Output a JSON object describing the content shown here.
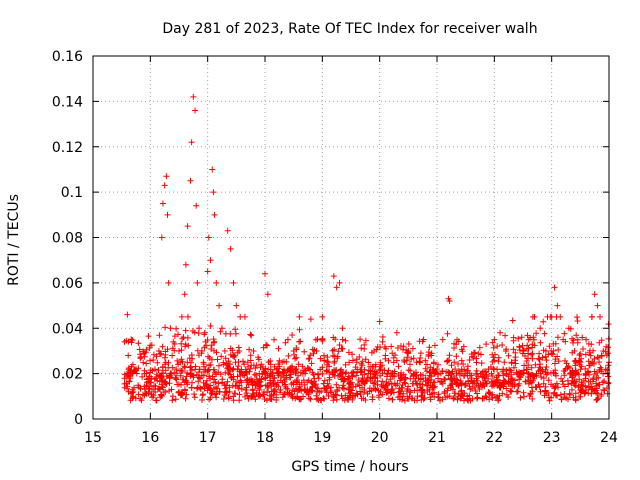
{
  "chart_data": {
    "type": "scatter",
    "title": "Day 281 of 2023, Rate Of TEC Index for receiver walh",
    "xlabel": "GPS time / hours",
    "ylabel": "ROTI / TECUs",
    "xlim": [
      15,
      24
    ],
    "ylim": [
      0,
      0.16
    ],
    "x_ticks": [
      15,
      16,
      17,
      18,
      19,
      20,
      21,
      22,
      23,
      24
    ],
    "y_ticks": [
      0,
      0.02,
      0.04,
      0.06,
      0.08,
      0.1,
      0.12,
      0.14,
      0.16
    ],
    "x_tick_labels": [
      "15",
      "16",
      "17",
      "18",
      "19",
      "20",
      "21",
      "22",
      "23",
      "24"
    ],
    "y_tick_labels": [
      "0",
      "0.02",
      "0.04",
      "0.06",
      "0.08",
      "0.1",
      "0.12",
      "0.14",
      "0.16"
    ],
    "grid": true,
    "marker": "+",
    "series_color": "#ff0000",
    "series": [
      {
        "name": "ROTI",
        "note": "dense cloud of + markers; representative points read from the plot",
        "x": [
          15.55,
          15.6,
          15.62,
          15.65,
          15.7,
          15.75,
          15.8,
          15.9,
          16.0,
          16.05,
          16.1,
          16.15,
          16.2,
          16.22,
          16.25,
          16.28,
          16.3,
          16.32,
          16.35,
          16.38,
          16.4,
          16.45,
          16.5,
          16.55,
          16.6,
          16.62,
          16.65,
          16.7,
          16.72,
          16.75,
          16.78,
          16.8,
          16.82,
          16.85,
          16.9,
          16.95,
          17.0,
          17.02,
          17.05,
          17.08,
          17.1,
          17.12,
          17.15,
          17.2,
          17.25,
          17.3,
          17.35,
          17.4,
          17.45,
          17.5,
          17.55,
          17.6,
          17.65,
          17.7,
          17.8,
          17.9,
          18.0,
          18.05,
          18.1,
          18.2,
          18.3,
          18.4,
          18.5,
          18.6,
          18.7,
          18.8,
          18.9,
          19.0,
          19.1,
          19.2,
          19.25,
          19.3,
          19.35,
          19.4,
          19.5,
          19.6,
          19.7,
          19.8,
          19.9,
          20.0,
          20.1,
          20.2,
          20.3,
          20.4,
          20.5,
          20.6,
          20.7,
          20.8,
          20.9,
          21.0,
          21.1,
          21.2,
          21.22,
          21.3,
          21.4,
          21.5,
          21.6,
          21.7,
          21.8,
          21.9,
          22.0,
          22.1,
          22.2,
          22.3,
          22.4,
          22.5,
          22.6,
          22.7,
          22.8,
          22.9,
          23.0,
          23.05,
          23.1,
          23.15,
          23.2,
          23.3,
          23.4,
          23.5,
          23.6,
          23.7,
          23.75,
          23.8,
          23.9,
          24.0
        ],
        "y": [
          0.034,
          0.046,
          0.012,
          0.018,
          0.01,
          0.022,
          0.014,
          0.02,
          0.016,
          0.026,
          0.018,
          0.03,
          0.08,
          0.095,
          0.103,
          0.107,
          0.09,
          0.06,
          0.04,
          0.028,
          0.034,
          0.022,
          0.03,
          0.045,
          0.055,
          0.068,
          0.085,
          0.105,
          0.122,
          0.142,
          0.136,
          0.094,
          0.06,
          0.04,
          0.03,
          0.038,
          0.065,
          0.08,
          0.07,
          0.11,
          0.1,
          0.09,
          0.06,
          0.05,
          0.04,
          0.03,
          0.083,
          0.075,
          0.06,
          0.05,
          0.03,
          0.02,
          0.045,
          0.025,
          0.03,
          0.02,
          0.064,
          0.055,
          0.02,
          0.015,
          0.025,
          0.035,
          0.03,
          0.045,
          0.02,
          0.044,
          0.03,
          0.045,
          0.025,
          0.063,
          0.058,
          0.06,
          0.04,
          0.02,
          0.015,
          0.025,
          0.018,
          0.02,
          0.03,
          0.043,
          0.028,
          0.02,
          0.038,
          0.015,
          0.03,
          0.02,
          0.025,
          0.018,
          0.028,
          0.022,
          0.035,
          0.053,
          0.052,
          0.025,
          0.02,
          0.015,
          0.018,
          0.02,
          0.015,
          0.022,
          0.035,
          0.038,
          0.03,
          0.025,
          0.02,
          0.03,
          0.035,
          0.045,
          0.04,
          0.03,
          0.045,
          0.058,
          0.05,
          0.045,
          0.035,
          0.04,
          0.03,
          0.025,
          0.035,
          0.045,
          0.055,
          0.05,
          0.03,
          0.025
        ]
      }
    ]
  }
}
